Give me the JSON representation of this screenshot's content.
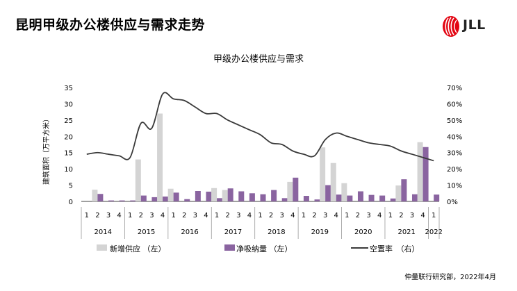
{
  "header": {
    "title": "昆明甲级办公楼供应与需求走势"
  },
  "logo": {
    "text": "JLL",
    "color": "#e30613"
  },
  "footer": {
    "source": "仲量联行研究部，2022年4月"
  },
  "chart_data": {
    "type": "bar",
    "title": "甲级办公楼供应与需求",
    "ylabel": "建筑面积（万平方米）",
    "y_ticks": [
      "0",
      "5",
      "10",
      "15",
      "20",
      "25",
      "30",
      "35"
    ],
    "y2_ticks": [
      "0%",
      "10%",
      "20%",
      "30%",
      "40%",
      "50%",
      "60%",
      "70%"
    ],
    "ylim": [
      0,
      35
    ],
    "y2lim": [
      0,
      0.7
    ],
    "quarters": [
      "1",
      "2",
      "3",
      "4",
      "1",
      "2",
      "3",
      "4",
      "1",
      "2",
      "3",
      "4",
      "1",
      "2",
      "3",
      "4",
      "1",
      "2",
      "3",
      "4",
      "1",
      "2",
      "3",
      "4",
      "1",
      "2",
      "3",
      "4",
      "1",
      "2",
      "3",
      "4",
      "1"
    ],
    "years": [
      {
        "label": "2014",
        "start": 0,
        "end": 3
      },
      {
        "label": "2015",
        "start": 4,
        "end": 7
      },
      {
        "label": "2016",
        "start": 8,
        "end": 11
      },
      {
        "label": "2017",
        "start": 12,
        "end": 15
      },
      {
        "label": "2018",
        "start": 16,
        "end": 19
      },
      {
        "label": "2019",
        "start": 20,
        "end": 23
      },
      {
        "label": "2020",
        "start": 24,
        "end": 27
      },
      {
        "label": "2021",
        "start": 28,
        "end": 31
      },
      {
        "label": "2022",
        "start": 32,
        "end": 32
      }
    ],
    "series": [
      {
        "name": "新增供应 （左）",
        "kind": "bar",
        "color": "#d4d4d4",
        "values": [
          0,
          3.6,
          0,
          0,
          0,
          12.9,
          0,
          27.0,
          3.9,
          0,
          0,
          0,
          4.1,
          3.5,
          0,
          0,
          0,
          0,
          0,
          6.0,
          0,
          0,
          16.6,
          11.8,
          5.6,
          0,
          0,
          0,
          0,
          4.9,
          0,
          18.2,
          0
        ]
      },
      {
        "name": "净吸纳量 （左）",
        "kind": "bar",
        "color": "#8a64a0",
        "values": [
          0,
          2.3,
          0.3,
          0.3,
          0.3,
          1.8,
          1.3,
          1.5,
          2.7,
          0.7,
          3.2,
          3.0,
          1.0,
          4.0,
          3.1,
          2.5,
          2.2,
          3.5,
          1.0,
          7.3,
          1.7,
          0.6,
          5.0,
          2.1,
          1.8,
          3.1,
          2.0,
          1.8,
          0.9,
          6.8,
          2.2,
          16.7,
          2.1
        ]
      },
      {
        "name": "空置率　（右）",
        "kind": "line",
        "color": "#3a3a3a",
        "axis": "right",
        "values": [
          0.29,
          0.3,
          0.29,
          0.28,
          0.27,
          0.48,
          0.45,
          0.66,
          0.63,
          0.62,
          0.58,
          0.54,
          0.54,
          0.5,
          0.47,
          0.44,
          0.41,
          0.36,
          0.35,
          0.31,
          0.29,
          0.28,
          0.38,
          0.42,
          0.4,
          0.38,
          0.36,
          0.35,
          0.34,
          0.31,
          0.29,
          0.27,
          0.25
        ]
      }
    ]
  }
}
